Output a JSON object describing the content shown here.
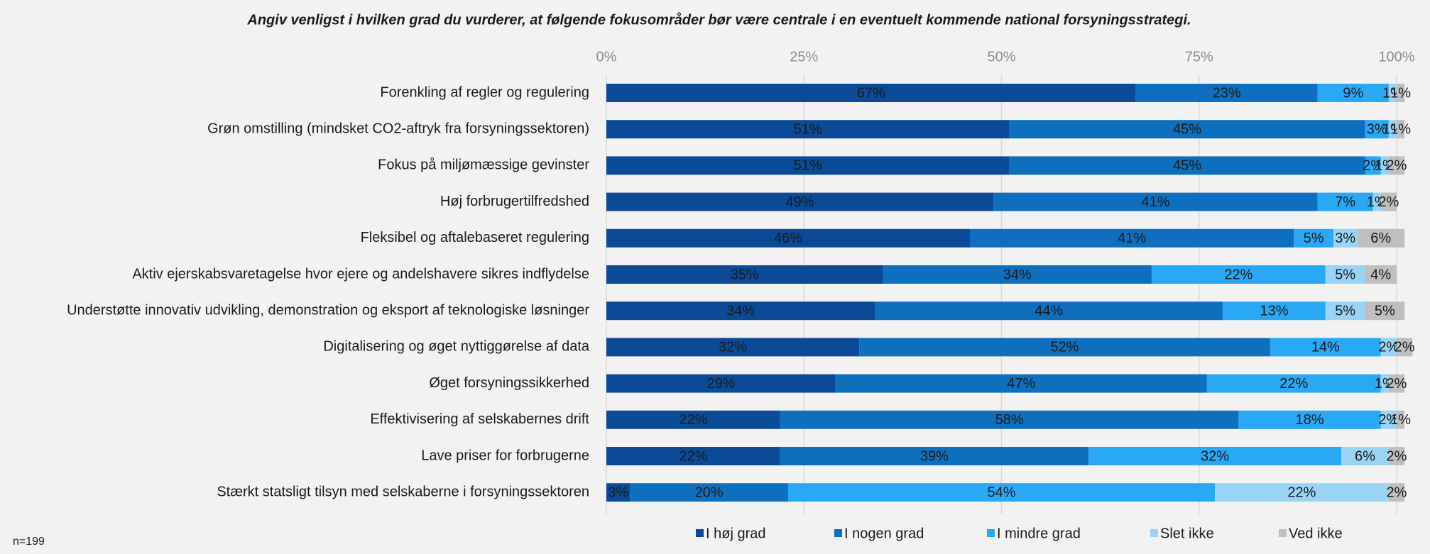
{
  "chart_data": {
    "type": "stacked-bar-horizontal",
    "title": "Angiv venligst i hvilken grad du vurderer, at følgende fokusområder bør være centrale i en eventuelt kommende national forsyningsstrategi.",
    "note": "n=199",
    "categories": [
      "Forenkling af regler og regulering",
      "Grøn omstilling (mindsket CO2-aftryk fra forsyningssektoren)",
      "Fokus på miljømæssige gevinster",
      "Høj forbrugertilfredshed",
      "Fleksibel og aftalebaseret regulering",
      "Aktiv ejerskabsvaretagelse hvor ejere og andelshavere sikres indflydelse",
      "Understøtte innovativ udvikling, demonstration og eksport af teknologiske løsninger",
      "Digitalisering og øget nyttiggørelse af data",
      "Øget forsyningssikkerhed",
      "Effektivisering af selskabernes drift",
      "Lave priser for forbrugerne",
      "Stærkt statsligt tilsyn med selskaberne i forsyningssektoren"
    ],
    "series": [
      {
        "name": "I høj grad",
        "color": "#0b4a96",
        "label_color": "#ffffff",
        "values": [
          67,
          51,
          51,
          49,
          46,
          35,
          34,
          32,
          29,
          22,
          22,
          3
        ],
        "value_labels": [
          "67%",
          "51%",
          "51%",
          "49%",
          "46%",
          "35%",
          "34%",
          "32%",
          "29%",
          "22%",
          "22%",
          "3%"
        ]
      },
      {
        "name": "I nogen grad",
        "color": "#0f6fbf",
        "label_color": "#ffffff",
        "values": [
          23,
          45,
          45,
          41,
          41,
          34,
          44,
          52,
          47,
          58,
          39,
          20
        ],
        "value_labels": [
          "23%",
          "45%",
          "45%",
          "41%",
          "41%",
          "34%",
          "44%",
          "52%",
          "47%",
          "58%",
          "39%",
          "20%"
        ]
      },
      {
        "name": "I mindre grad",
        "color": "#29a8f5",
        "label_color": "#1a1a1a",
        "values": [
          9,
          3,
          2,
          7,
          5,
          22,
          13,
          14,
          22,
          18,
          32,
          54
        ],
        "value_labels": [
          "9%",
          "3%",
          "2%",
          "7%",
          "5%",
          "22%",
          "13%",
          "14%",
          "22%",
          "18%",
          "32%",
          "54%"
        ]
      },
      {
        "name": "Slet ikke",
        "color": "#99d4f7",
        "label_color": "#1a1a1a",
        "values": [
          1,
          1,
          1,
          1,
          3,
          5,
          5,
          2,
          1,
          2,
          6,
          22
        ],
        "value_labels": [
          "1%",
          "1%",
          "1%",
          "1%",
          "3%",
          "5%",
          "5%",
          "2%",
          "1%",
          "2%",
          "6%",
          "22%"
        ]
      },
      {
        "name": "Ved ikke",
        "color": "#bfbfbf",
        "label_color": "#1a1a1a",
        "values": [
          1,
          1,
          2,
          2,
          6,
          4,
          5,
          2,
          2,
          1,
          2,
          2
        ],
        "value_labels": [
          "1%",
          "1%",
          "2%",
          "2%",
          "6%",
          "4%",
          "5%",
          "2%",
          "2%",
          "1%",
          "2%",
          "2%"
        ]
      }
    ],
    "xlim": [
      0,
      100
    ],
    "xticks": [
      {
        "value": 0,
        "label": "0%"
      },
      {
        "value": 25,
        "label": "25%"
      },
      {
        "value": 50,
        "label": "50%"
      },
      {
        "value": 75,
        "label": "75%"
      },
      {
        "value": 100,
        "label": "100%"
      }
    ],
    "grid": true,
    "legend": "bottom"
  }
}
